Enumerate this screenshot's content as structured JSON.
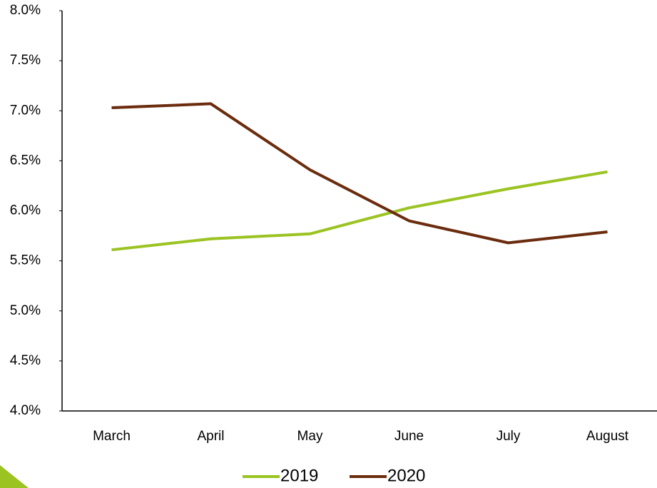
{
  "chart_data": {
    "type": "line",
    "categories": [
      "March",
      "April",
      "May",
      "June",
      "July",
      "August"
    ],
    "series": [
      {
        "name": "2019",
        "color": "#9bc321",
        "values": [
          5.61,
          5.72,
          5.77,
          6.03,
          6.22,
          6.39
        ]
      },
      {
        "name": "2020",
        "color": "#6b2c0e",
        "values": [
          7.03,
          7.07,
          6.41,
          5.9,
          5.68,
          5.79
        ]
      }
    ],
    "ylim": [
      4,
      8
    ],
    "yticks": [
      {
        "value": 4,
        "label": "4.0%"
      },
      {
        "value": 4.5,
        "label": "4.5%"
      },
      {
        "value": 5,
        "label": "5.0%"
      },
      {
        "value": 5.5,
        "label": "5.5%"
      },
      {
        "value": 6,
        "label": "6.0%"
      },
      {
        "value": 6.5,
        "label": "6.5%"
      },
      {
        "value": 7,
        "label": "7.0%"
      },
      {
        "value": 7.5,
        "label": "7.5%"
      },
      {
        "value": 8,
        "label": "8.0%"
      }
    ],
    "grid": false,
    "legend": "bottom"
  }
}
